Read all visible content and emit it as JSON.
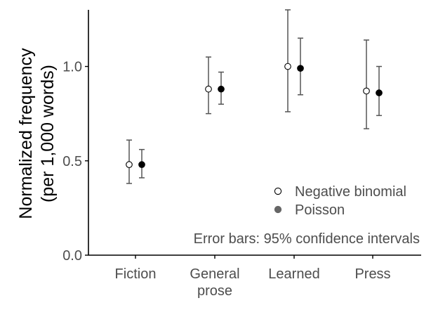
{
  "chart_data": {
    "type": "scatter",
    "xlabel": "",
    "ylabel_line1": "Normalized frequency",
    "ylabel_line2": "(per 1,000 words)",
    "categories": [
      "Fiction",
      "General prose",
      "Learned",
      "Press"
    ],
    "category_labels": [
      [
        "Fiction"
      ],
      [
        "General",
        "prose"
      ],
      [
        "Learned"
      ],
      [
        "Press"
      ]
    ],
    "ylim": [
      0,
      1.3
    ],
    "yticks": [
      0.0,
      0.5,
      1.0
    ],
    "ytick_labels": [
      "0.0",
      "0.5",
      "1.0"
    ],
    "grid": false,
    "legend_position": "bottom-right",
    "series": [
      {
        "name": "Negative binomial",
        "marker": "open-circle",
        "values": [
          0.48,
          0.88,
          1.0,
          0.87
        ],
        "ci_low": [
          0.38,
          0.75,
          0.76,
          0.67
        ],
        "ci_high": [
          0.61,
          1.05,
          1.31,
          1.14
        ]
      },
      {
        "name": "Poisson",
        "marker": "filled-circle",
        "values": [
          0.48,
          0.88,
          0.99,
          0.86
        ],
        "ci_low": [
          0.41,
          0.8,
          0.85,
          0.74
        ],
        "ci_high": [
          0.56,
          0.97,
          1.15,
          1.0
        ]
      }
    ],
    "annotation": "Error bars: 95% confidence intervals",
    "colors": {
      "errorbar": "#555555",
      "axis": "#000000",
      "tick_text": "#4d4d4d",
      "legend_filled": "#666666",
      "point_filled": "#000000",
      "point_open_fill": "#ffffff"
    }
  }
}
